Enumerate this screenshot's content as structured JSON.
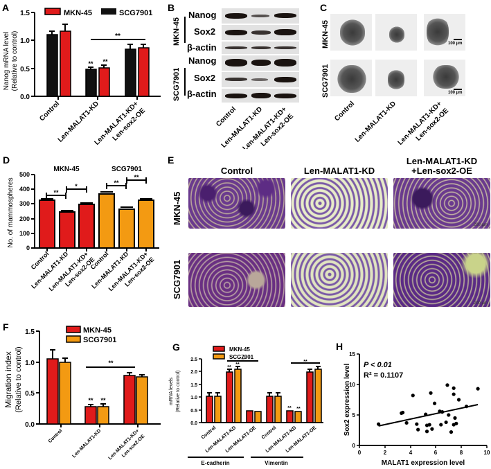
{
  "panels": {
    "A": "A",
    "B": "B",
    "C": "C",
    "D": "D",
    "E": "E",
    "F": "F",
    "G": "G",
    "H": "H"
  },
  "colors": {
    "red": "#e01b1b",
    "black": "#111111",
    "orange": "#f39a12",
    "purple_stain": "#5a2a7e",
    "pale_stain": "#e7ecc8"
  },
  "groups": [
    "Control",
    "Len-MALAT1-KD",
    "Len-MALAT1-KD+\nLen-sox2-OE"
  ],
  "group_labels": {
    "control": "Control",
    "kd": "Len-MALAT1-KD",
    "kd_oe_1": "Len-MALAT1-KD+",
    "kd_oe_2": "Len-sox2-OE",
    "kd_oe_combined_1": "Len-MALAT1-KD",
    "kd_oe_combined_2": "+Len-sox2-OE",
    "oe": "Len-MALAT1-OE"
  },
  "cell_lines": {
    "mkn": "MKN-45",
    "scg": "SCG7901"
  },
  "blot": {
    "rows": [
      "Nanog",
      "Sox2",
      "β-actin",
      "Nanog",
      "Sox2",
      "β-actin"
    ],
    "side_labels": [
      "MKN-45",
      "SCG7901"
    ]
  },
  "scale_bars": {
    "sphere": "100 µm",
    "migration": "200 µm"
  },
  "chart_data": [
    {
      "panel": "A",
      "type": "bar",
      "title": "",
      "ylabel": "Nanog mRNA level\n(Relative to control)",
      "xlabel": "",
      "ylim": [
        0,
        1.5
      ],
      "yticks": [
        "0.0",
        "0.5",
        "1.0",
        "1.5"
      ],
      "categories": [
        "Control",
        "Len-MALAT1-KD",
        "Len-MALAT1-KD+ Len-sox2-OE"
      ],
      "legend": [
        "MKN-45",
        "SCG7901"
      ],
      "legend_colors": [
        "#e01b1b",
        "#111111"
      ],
      "series": [
        {
          "name": "SCG7901",
          "color": "#111111",
          "values": [
            1.1,
            0.48,
            0.84
          ],
          "errors": [
            0.06,
            0.04,
            0.08
          ]
        },
        {
          "name": "MKN-45",
          "color": "#e01b1b",
          "values": [
            1.16,
            0.51,
            0.87
          ],
          "errors": [
            0.12,
            0.05,
            0.06
          ]
        }
      ],
      "annotations": [
        "**",
        "**",
        "**"
      ],
      "grid": false,
      "legend_position": "top"
    },
    {
      "panel": "D",
      "type": "bar",
      "ylabel": "No. of mammospheres",
      "ylim": [
        0,
        500
      ],
      "yticks": [
        "0",
        "100",
        "200",
        "300",
        "400",
        "500"
      ],
      "group_titles": [
        "MKN-45",
        "SCG7901"
      ],
      "categories": [
        "Control",
        "Len-MALAT1-KD",
        "Len-MALAT1-KD+ Len-sox2-OE",
        "Control",
        "Len-MALAT1-KD",
        "Len-MALAT1-KD+ Len-sox2-OE"
      ],
      "series": [
        {
          "name": "MKN-45",
          "color": "#e01b1b",
          "values": [
            325,
            245,
            295,
            null,
            null,
            null
          ],
          "errors": [
            8,
            8,
            6,
            null,
            null,
            null
          ]
        },
        {
          "name": "SCG7901",
          "color": "#f39a12",
          "values": [
            null,
            null,
            null,
            370,
            265,
            325
          ],
          "errors": [
            null,
            null,
            null,
            10,
            10,
            8
          ]
        }
      ],
      "annotations": [
        "**",
        "*",
        "**",
        "**"
      ]
    },
    {
      "panel": "F",
      "type": "bar",
      "ylabel": "Migration index\n(Relative to control)",
      "ylim": [
        0,
        1.5
      ],
      "yticks": [
        "0.0",
        "0.5",
        "1.0",
        "1.5"
      ],
      "categories": [
        "Control",
        "Len-MALAT1-KD",
        "Len-MALAT1-KD+ Len-sox2-OE"
      ],
      "legend": [
        "MKN-45",
        "SCG7901"
      ],
      "series": [
        {
          "name": "MKN-45",
          "color": "#e01b1b",
          "values": [
            1.05,
            0.28,
            0.78
          ],
          "errors": [
            0.14,
            0.03,
            0.04
          ]
        },
        {
          "name": "SCG7901",
          "color": "#f39a12",
          "values": [
            1.0,
            0.28,
            0.76
          ],
          "errors": [
            0.06,
            0.04,
            0.03
          ]
        }
      ],
      "annotations": [
        "**",
        "**",
        "**"
      ]
    },
    {
      "panel": "G",
      "type": "bar",
      "ylabel": "mRNA levels\n(Relative to control)",
      "ylim": [
        0,
        2.5
      ],
      "yticks": [
        "0.0",
        "0.5",
        "1.0",
        "1.5",
        "2.0",
        "2.5"
      ],
      "categories": [
        "Control",
        "Len-MALAT1-KD",
        "Len-MALAT1-OE",
        "Control",
        "Len-MALAT1-KD",
        "Len-MALAT1-OE"
      ],
      "group_titles": [
        "E-cadherin",
        "Vimentin"
      ],
      "legend": [
        "MKN-45",
        "SCG7901"
      ],
      "series": [
        {
          "name": "MKN-45",
          "color": "#e01b1b",
          "values": [
            1.02,
            1.97,
            0.47,
            1.02,
            0.47,
            1.97
          ],
          "errors": [
            0.15,
            0.1,
            0.03,
            0.15,
            0.04,
            0.1
          ]
        },
        {
          "name": "SCG7901",
          "color": "#f39a12",
          "values": [
            1.03,
            2.08,
            0.45,
            1.03,
            0.44,
            2.08
          ],
          "errors": [
            0.15,
            0.1,
            0.03,
            0.15,
            0.05,
            0.1
          ]
        }
      ],
      "annotations": [
        "**",
        "**",
        "**",
        "**",
        "**",
        "**"
      ]
    },
    {
      "panel": "H",
      "type": "scatter",
      "xlabel": "MALAT1 expression level",
      "ylabel": "Sox2 expression level",
      "xlim": [
        0,
        10
      ],
      "ylim": [
        0,
        15
      ],
      "xticks": [
        "0",
        "2",
        "4",
        "6",
        "8",
        "10"
      ],
      "yticks": [
        "0",
        "5",
        "10",
        "15"
      ],
      "annotation_p": "P < 0.01",
      "annotation_r2": "R² = 0.1107",
      "points": [
        [
          1.5,
          3.5
        ],
        [
          3.3,
          5.3
        ],
        [
          3.4,
          5.4
        ],
        [
          3.7,
          3.7
        ],
        [
          4.2,
          8.2
        ],
        [
          4.5,
          3.5
        ],
        [
          4.6,
          2.6
        ],
        [
          5.2,
          5.1
        ],
        [
          5.3,
          3.3
        ],
        [
          5.3,
          2.3
        ],
        [
          5.5,
          3.4
        ],
        [
          5.6,
          8.6
        ],
        [
          5.7,
          2.7
        ],
        [
          5.9,
          6.9
        ],
        [
          6.3,
          5.6
        ],
        [
          6.4,
          3.4
        ],
        [
          6.5,
          5.5
        ],
        [
          6.8,
          3.8
        ],
        [
          6.9,
          9.9
        ],
        [
          7.0,
          5.0
        ],
        [
          7.2,
          2.2
        ],
        [
          7.4,
          9.4
        ],
        [
          7.4,
          8.4
        ],
        [
          7.4,
          3.4
        ],
        [
          7.5,
          4.5
        ],
        [
          7.6,
          3.6
        ],
        [
          7.8,
          7.5
        ],
        [
          8.4,
          6.4
        ],
        [
          9.3,
          9.3
        ]
      ],
      "fit_line": {
        "x1": 1.5,
        "y1": 3.2,
        "x2": 9.3,
        "y2": 6.7
      }
    }
  ]
}
